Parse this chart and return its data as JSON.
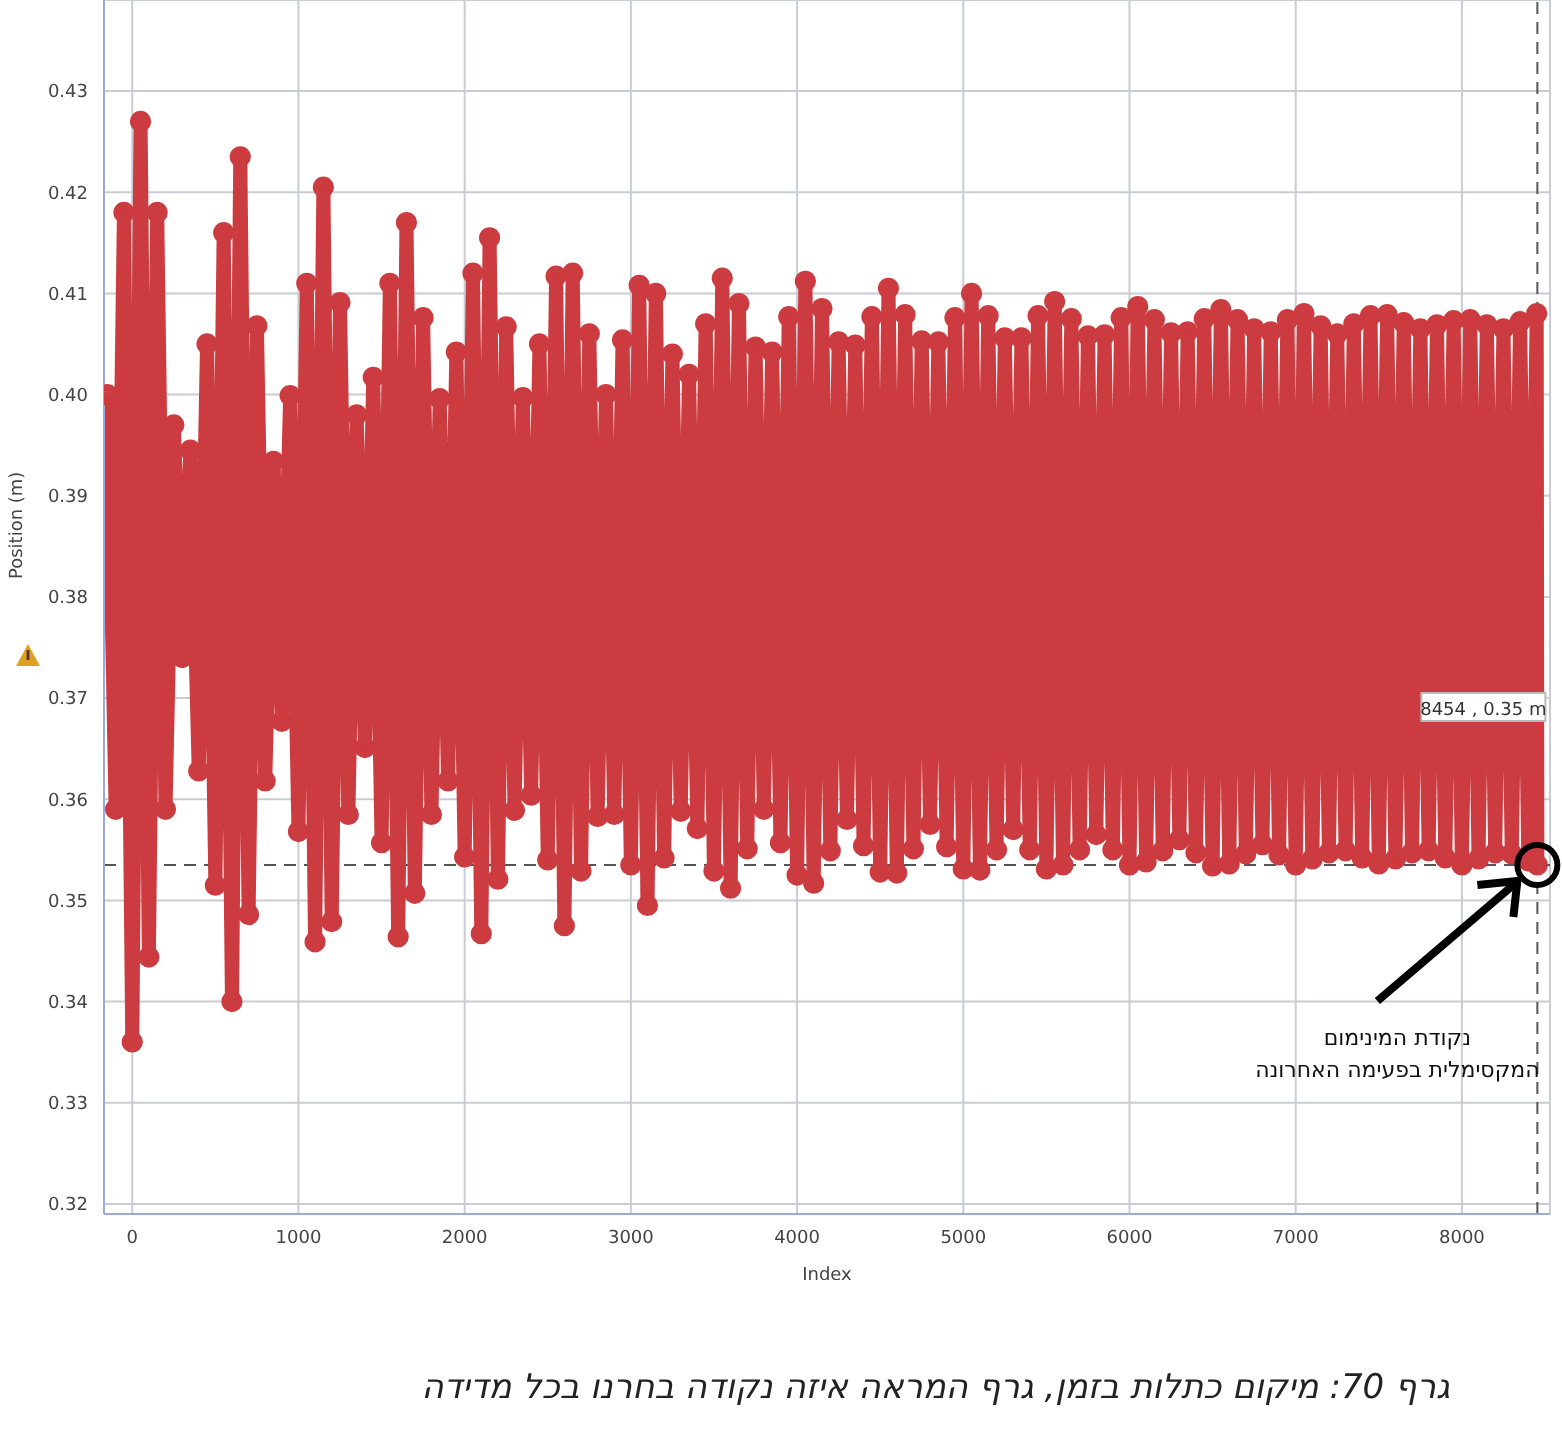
{
  "chart_data": {
    "type": "line",
    "xlabel": "Index",
    "ylabel": "Position (m)",
    "xlim": [
      -170,
      8530
    ],
    "xticks": [
      0,
      1000,
      2000,
      3000,
      4000,
      5000,
      6000,
      7000,
      8000
    ],
    "ylim": [
      0.319,
      0.439
    ],
    "yticks": [
      0.32,
      0.33,
      0.34,
      0.35,
      0.36,
      0.37,
      0.38,
      0.39,
      {
        "value": 0.4,
        "label": "0.40"
      },
      0.41,
      0.42,
      0.43
    ],
    "grid": true,
    "legend": false,
    "marker": "circle",
    "line_style": "solid",
    "ref_lines": [
      {
        "axis": "y",
        "value": 0.3535,
        "color": "#555555",
        "line_style": "dashed"
      },
      {
        "axis": "x",
        "value": 8454,
        "color": "#555555",
        "line_style": "dashed"
      }
    ],
    "annotations": [
      "8454 , 0.35 m",
      "נקודת המינימום\nהמקסימלית בפעימה האחרונה",
      "גרף 70: מיקום כתלות בזמן, גרף המראה איזה נקודה בחרנו בכל מדידה"
    ],
    "series": [
      {
        "color": "#cc3b3f",
        "x": [
          -150,
          -100,
          -50,
          0,
          50,
          100,
          150,
          200,
          250,
          300,
          350,
          400,
          450,
          500,
          550,
          600,
          650,
          700,
          750,
          800,
          850,
          900,
          950,
          1000,
          1050,
          1100,
          1150,
          1200,
          1250,
          1300,
          1350,
          1400,
          1450,
          1500,
          1550,
          1600,
          1650,
          1700,
          1750,
          1800,
          1850,
          1900,
          1950,
          2000,
          2050,
          2100,
          2150,
          2200,
          2250,
          2300,
          2350,
          2400,
          2450,
          2500,
          2550,
          2600,
          2650,
          2700,
          2750,
          2800,
          2850,
          2900,
          2950,
          3000,
          3050,
          3100,
          3150,
          3200,
          3250,
          3300,
          3350,
          3400,
          3450,
          3500,
          3550,
          3600,
          3650,
          3700,
          3750,
          3800,
          3850,
          3900,
          3950,
          4000,
          4050,
          4100,
          4150,
          4200,
          4250,
          4300,
          4350,
          4400,
          4450,
          4500,
          4550,
          4600,
          4650,
          4700,
          4750,
          4800,
          4850,
          4900,
          4950,
          5000,
          5050,
          5100,
          5150,
          5200,
          5250,
          5300,
          5350,
          5400,
          5450,
          5500,
          5550,
          5600,
          5650,
          5700,
          5750,
          5800,
          5850,
          5900,
          5950,
          6000,
          6050,
          6100,
          6150,
          6200,
          6250,
          6300,
          6350,
          6400,
          6450,
          6500,
          6550,
          6600,
          6650,
          6700,
          6750,
          6800,
          6850,
          6900,
          6950,
          7000,
          7050,
          7100,
          7150,
          7200,
          7250,
          7300,
          7350,
          7400,
          7450,
          7500,
          7550,
          7600,
          7650,
          7700,
          7750,
          7800,
          7850,
          7900,
          7950,
          8000,
          8050,
          8100,
          8150,
          8200,
          8250,
          8300,
          8350,
          8400,
          8450,
          8454
        ],
        "values": [
          0.4,
          0.359,
          0.418,
          0.336,
          0.427,
          0.3444,
          0.418,
          0.359,
          0.397,
          0.374,
          0.3945,
          0.3628,
          0.405,
          0.3515,
          0.416,
          0.34,
          0.4235,
          0.3486,
          0.4068,
          0.3618,
          0.3934,
          0.3677,
          0.3999,
          0.3568,
          0.411,
          0.3459,
          0.4205,
          0.3479,
          0.4091,
          0.3585,
          0.398,
          0.3651,
          0.4017,
          0.3557,
          0.411,
          0.3464,
          0.417,
          0.3507,
          0.4076,
          0.3585,
          0.3996,
          0.3618,
          0.4042,
          0.3543,
          0.412,
          0.3467,
          0.4155,
          0.3521,
          0.4067,
          0.3589,
          0.3997,
          0.3604,
          0.405,
          0.354,
          0.4117,
          0.3475,
          0.412,
          0.3529,
          0.406,
          0.3583,
          0.4,
          0.3585,
          0.4054,
          0.3535,
          0.4108,
          0.3495,
          0.41,
          0.3542,
          0.404,
          0.3588,
          0.402,
          0.3571,
          0.407,
          0.3529,
          0.4115,
          0.3512,
          0.409,
          0.3551,
          0.4047,
          0.359,
          0.4042,
          0.3557,
          0.4077,
          0.3525,
          0.4112,
          0.3517,
          0.4085,
          0.3549,
          0.4052,
          0.358,
          0.4049,
          0.3554,
          0.4077,
          0.3528,
          0.4105,
          0.3527,
          0.4079,
          0.3551,
          0.4053,
          0.3575,
          0.4052,
          0.3553,
          0.4076,
          0.3531,
          0.41,
          0.353,
          0.4078,
          0.355,
          0.4056,
          0.357,
          0.4056,
          0.355,
          0.4078,
          0.3531,
          0.4092,
          0.3535,
          0.4075,
          0.355,
          0.4058,
          0.3565,
          0.4059,
          0.355,
          0.4076,
          0.3535,
          0.4087,
          0.3538,
          0.4074,
          0.3549,
          0.4061,
          0.356,
          0.4062,
          0.3547,
          0.4075,
          0.3534,
          0.4084,
          0.3536,
          0.4074,
          0.3546,
          0.4065,
          0.3555,
          0.4062,
          0.3545,
          0.4074,
          0.3535,
          0.408,
          0.3541,
          0.4068,
          0.3547,
          0.406,
          0.3549,
          0.407,
          0.3542,
          0.4078,
          0.3536,
          0.4079,
          0.3541,
          0.4071,
          0.3547,
          0.4065,
          0.3549,
          0.4069,
          0.3542,
          0.4073,
          0.3535,
          0.4074,
          0.3541,
          0.4069,
          0.3547,
          0.4065,
          0.3546,
          0.4072,
          0.3539,
          0.408,
          0.3535
        ]
      }
    ]
  }
}
